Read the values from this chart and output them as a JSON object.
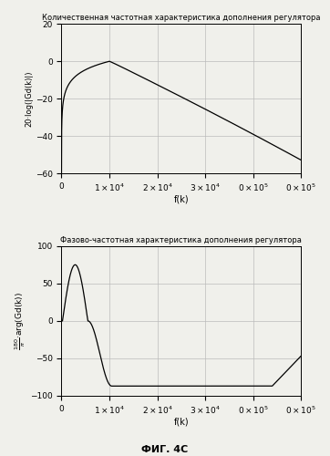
{
  "title1": "Количественная частотная характеристика дополнения регулятора",
  "title2": "Фазово-частотная характеристика дополнения регулятора",
  "fig_label": "ФИГ. 4С",
  "ylabel1": "20·log(|Gd(k)|)",
  "ylabel2_line1": "180",
  "ylabel2_line2": "—·arg(Gd(k))",
  "ylabel2_line3": "π",
  "xlabel": "f(k)",
  "xlim": [
    0,
    50000
  ],
  "ylim1": [
    -60,
    20
  ],
  "ylim2": [
    -100,
    100
  ],
  "xticks": [
    0,
    10000,
    20000,
    30000,
    40000,
    50000
  ],
  "yticks1": [
    20,
    0,
    -20,
    -40,
    -60
  ],
  "yticks2": [
    100,
    50,
    0,
    -50,
    -100
  ],
  "bg_color": "#f0f0eb",
  "line_color": "#000000",
  "grid_color": "#bbbbbb"
}
